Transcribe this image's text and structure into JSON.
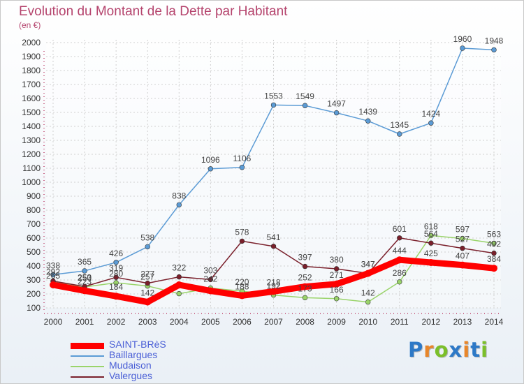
{
  "title": "Evolution du Montant de la Dette par Habitant",
  "subtitle": "(en €)",
  "logo": {
    "text": "Proxiti",
    "colors": [
      "#2d79c7",
      "#e8862a",
      "#7bbf2a",
      "#2d79c7",
      "#e8862a",
      "#2d79c7",
      "#7bbf2a"
    ]
  },
  "chart_data": {
    "type": "line",
    "title": "Evolution du Montant de la Dette par Habitant",
    "subtitle": "(en €)",
    "xlabel": "",
    "ylabel": "",
    "x": [
      "2000",
      "2001",
      "2002",
      "2003",
      "2004",
      "2005",
      "2006",
      "2007",
      "2008",
      "2009",
      "2010",
      "2011",
      "2012",
      "2013",
      "2014"
    ],
    "ylim": [
      100,
      2000
    ],
    "yticks": [
      100,
      200,
      300,
      400,
      500,
      600,
      700,
      800,
      900,
      1000,
      1100,
      1200,
      1300,
      1400,
      1500,
      1600,
      1700,
      1800,
      1900,
      2000
    ],
    "grid": true,
    "legend_position": "bottom-left",
    "series": [
      {
        "name": "SAINT-BRèS",
        "color": "#ff0000",
        "values": [
          265,
          223,
          184,
          142,
          265,
          222,
          188,
          218,
          252,
          271,
          347,
          444,
          425,
          407,
          384
        ],
        "labels": [
          "265",
          "223",
          "184",
          "142",
          "",
          "",
          "188",
          "218",
          "252",
          "271",
          "347",
          "444",
          "425",
          "407",
          "384"
        ]
      },
      {
        "name": "Baillargues",
        "color": "#5b9bd5",
        "values": [
          338,
          365,
          426,
          538,
          838,
          1096,
          1106,
          1553,
          1549,
          1497,
          1439,
          1345,
          1424,
          1960,
          1948
        ],
        "labels": [
          "338",
          "365",
          "426",
          "538",
          "838",
          "1096",
          "1106",
          "1553",
          "1549",
          "1497",
          "1439",
          "1345",
          "1424",
          "1960",
          "1948"
        ]
      },
      {
        "name": "Mudaison",
        "color": "#9ad46a",
        "values": [
          289,
          250,
          280,
          257,
          202,
          242,
          220,
          192,
          173,
          166,
          142,
          286,
          618,
          597,
          563
        ],
        "labels": [
          "",
          "250",
          "280",
          "257",
          "",
          "242",
          "220",
          "192",
          "173",
          "166",
          "142",
          "286",
          "618",
          "597",
          "563"
        ]
      },
      {
        "name": "Valergues",
        "color": "#7a1f2b",
        "values": [
          292,
          253,
          319,
          277,
          322,
          303,
          578,
          541,
          397,
          380,
          347,
          601,
          564,
          527,
          492
        ],
        "labels": [
          "292",
          "253",
          "319",
          "277",
          "322",
          "303",
          "578",
          "541",
          "397",
          "380",
          "347",
          "601",
          "564",
          "527",
          "492"
        ]
      }
    ]
  }
}
